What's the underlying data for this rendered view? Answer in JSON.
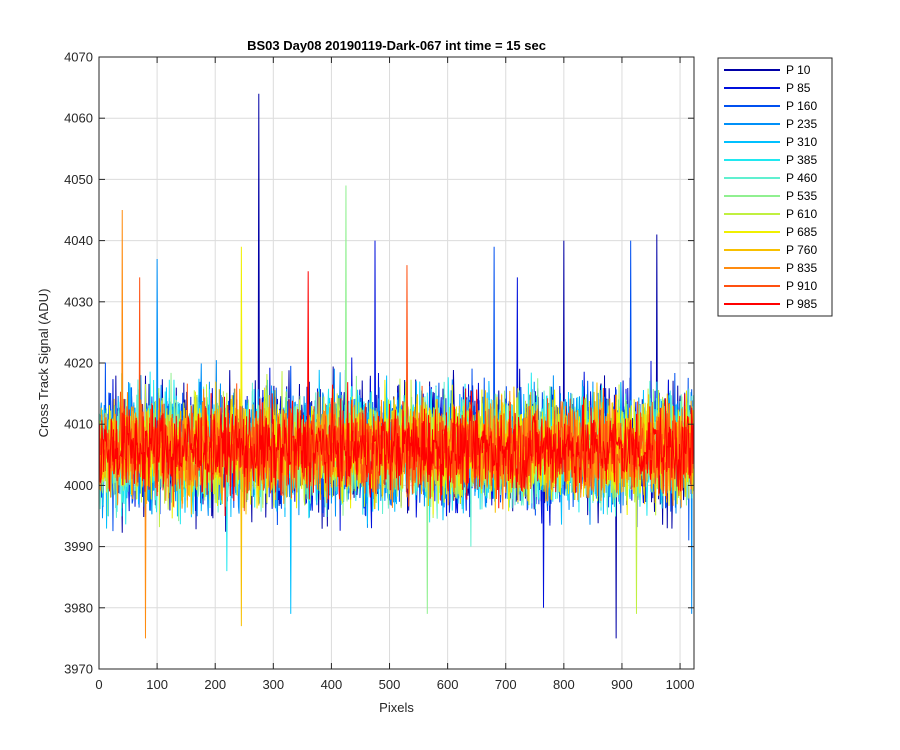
{
  "chart_data": {
    "type": "line",
    "title": "BS03 Day08 20190119-Dark-067 int time = 15 sec",
    "xlabel": "Pixels",
    "ylabel": "Cross Track Signal (ADU)",
    "xlim": [
      0,
      1024
    ],
    "ylim": [
      3970,
      4070
    ],
    "xticks": [
      0,
      100,
      200,
      300,
      400,
      500,
      600,
      700,
      800,
      900,
      1000
    ],
    "yticks": [
      3970,
      3980,
      3990,
      4000,
      4010,
      4020,
      4030,
      4040,
      4050,
      4060,
      4070
    ],
    "grid": true,
    "legend_position": "outside-top-right",
    "n_pixels": 1024,
    "baseline": 4006,
    "series": [
      {
        "name": "P 10",
        "color": "#0000A6",
        "spikes": [
          [
            275,
            4064
          ],
          [
            890,
            3975
          ],
          [
            960,
            4041
          ],
          [
            800,
            4040
          ]
        ]
      },
      {
        "name": "P 85",
        "color": "#0010DC",
        "spikes": [
          [
            475,
            4040
          ],
          [
            720,
            4034
          ],
          [
            765,
            3980
          ]
        ]
      },
      {
        "name": "P 160",
        "color": "#0050F0",
        "spikes": [
          [
            680,
            4039
          ],
          [
            915,
            4040
          ]
        ]
      },
      {
        "name": "P 235",
        "color": "#0090F8",
        "spikes": [
          [
            100,
            4037
          ],
          [
            1020,
            3979
          ]
        ]
      },
      {
        "name": "P 310",
        "color": "#00C0FF",
        "spikes": [
          [
            330,
            3979
          ]
        ]
      },
      {
        "name": "P 385",
        "color": "#20E8F0",
        "spikes": [
          [
            220,
            3986
          ]
        ]
      },
      {
        "name": "P 460",
        "color": "#60F0D0",
        "spikes": [
          [
            640,
            3990
          ]
        ]
      },
      {
        "name": "P 535",
        "color": "#90F090",
        "spikes": [
          [
            425,
            4049
          ],
          [
            565,
            3979
          ]
        ]
      },
      {
        "name": "P 610",
        "color": "#C0F040",
        "spikes": [
          [
            925,
            3979
          ]
        ]
      },
      {
        "name": "P 685",
        "color": "#F0F000",
        "spikes": [
          [
            245,
            4039
          ]
        ]
      },
      {
        "name": "P 760",
        "color": "#F8C000",
        "spikes": [
          [
            245,
            3977
          ]
        ]
      },
      {
        "name": "P 835",
        "color": "#FF8C10",
        "spikes": [
          [
            40,
            4045
          ],
          [
            80,
            3975
          ]
        ]
      },
      {
        "name": "P 910",
        "color": "#FF5010",
        "spikes": [
          [
            70,
            4034
          ],
          [
            530,
            4036
          ]
        ]
      },
      {
        "name": "P 985",
        "color": "#FF0000",
        "spikes": [
          [
            360,
            4035
          ]
        ]
      }
    ]
  }
}
